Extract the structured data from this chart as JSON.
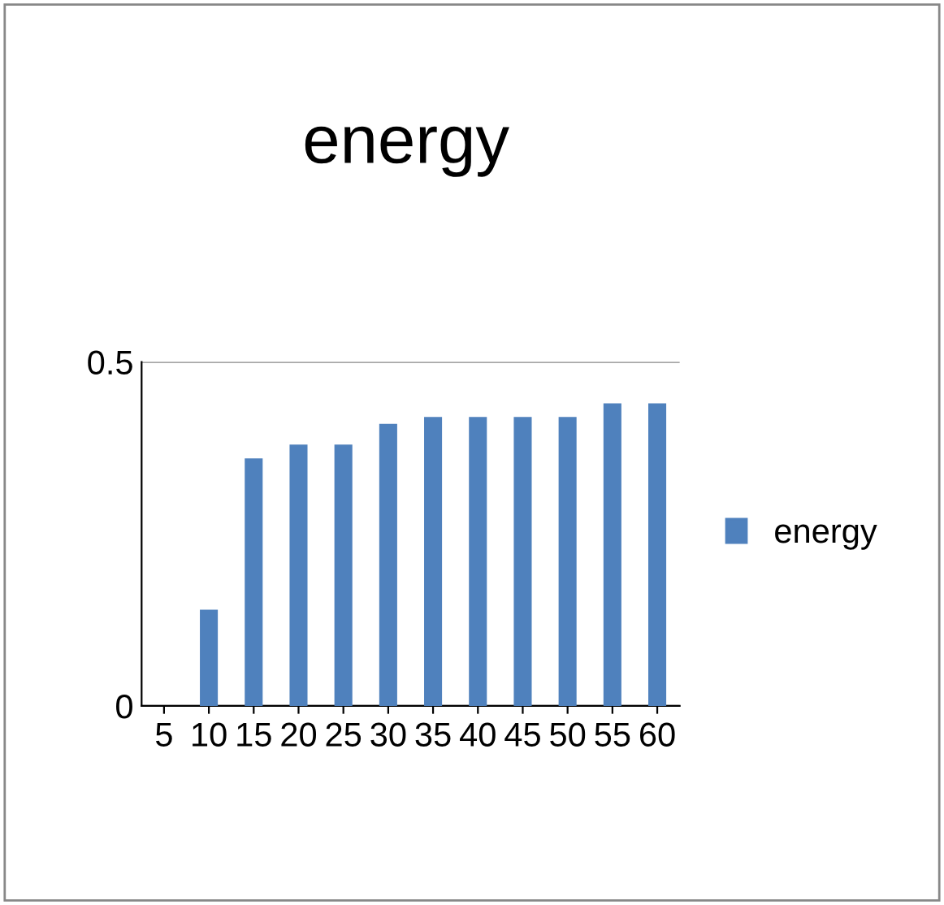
{
  "chart_data": {
    "type": "bar",
    "title": "energy",
    "categories": [
      "5",
      "10",
      "15",
      "20",
      "25",
      "30",
      "35",
      "40",
      "45",
      "50",
      "55",
      "60"
    ],
    "series": [
      {
        "name": "energy",
        "color": "#4f81bd",
        "values": [
          0,
          0.14,
          0.36,
          0.38,
          0.38,
          0.41,
          0.42,
          0.42,
          0.42,
          0.42,
          0.44,
          0.44
        ]
      }
    ],
    "ylim": [
      0,
      0.5
    ],
    "yticks": [
      0,
      0.5
    ],
    "grid": "y",
    "legend": "right"
  }
}
